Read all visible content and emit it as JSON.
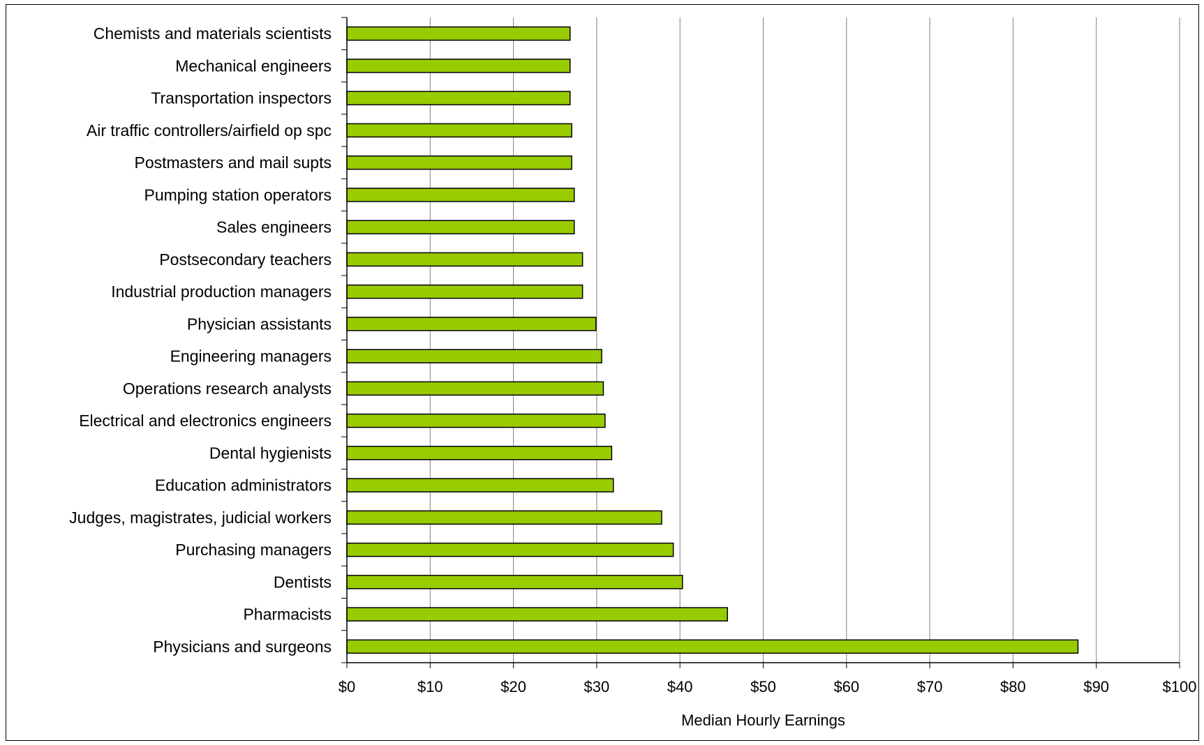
{
  "chart_data": {
    "type": "bar",
    "orientation": "horizontal",
    "categories": [
      "Chemists and materials scientists",
      "Mechanical engineers",
      "Transportation inspectors",
      "Air traffic controllers/airfield op spc",
      "Postmasters and mail supts",
      "Pumping station operators",
      "Sales engineers",
      "Postsecondary teachers",
      "Industrial production managers",
      "Physician assistants",
      "Engineering managers",
      "Operations research analysts",
      "Electrical and electronics engineers",
      "Dental hygienists",
      "Education administrators",
      "Judges, magistrates, judicial workers",
      "Purchasing managers",
      "Dentists",
      "Pharmacists",
      "Physicians and surgeons"
    ],
    "values": [
      26.8,
      26.8,
      26.8,
      27.0,
      27.0,
      27.3,
      27.3,
      28.3,
      28.3,
      29.9,
      30.6,
      30.8,
      31.0,
      31.8,
      32.0,
      37.8,
      39.2,
      40.3,
      45.7,
      87.8
    ],
    "xlabel": "Median Hourly Earnings",
    "ylabel": "",
    "xlim": [
      0,
      100
    ],
    "xticks": [
      "$0",
      "$10",
      "$20",
      "$30",
      "$40",
      "$50",
      "$60",
      "$70",
      "$80",
      "$90",
      "$100"
    ],
    "grid": "vertical",
    "bar_color": "#99cc00",
    "bar_edge_color": "#000000"
  }
}
